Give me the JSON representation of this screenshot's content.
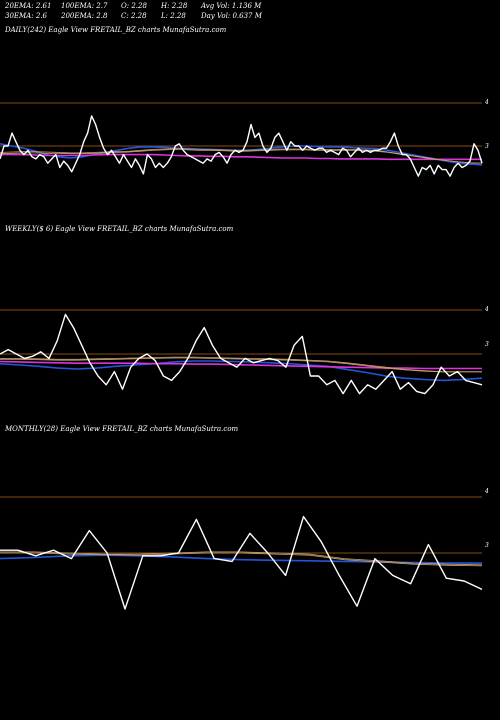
{
  "header": {
    "row1": [
      {
        "label": "20EMA:",
        "value": "2.61"
      },
      {
        "label": "100EMA:",
        "value": "2.7"
      },
      {
        "label": "O:",
        "value": "2.28"
      },
      {
        "label": "H:",
        "value": "2.28"
      },
      {
        "label": "Avg Vol:",
        "value": "1.136  M"
      }
    ],
    "row2": [
      {
        "label": "30EMA:",
        "value": "2.6"
      },
      {
        "label": "200EMA:",
        "value": "2.8"
      },
      {
        "label": "C:",
        "value": "2.28"
      },
      {
        "label": "L:",
        "value": "2.28"
      },
      {
        "label": "Day Vol:",
        "value": "0.637  M"
      }
    ]
  },
  "colors": {
    "background": "#000000",
    "price": "#ffffff",
    "ema_blue": "#2255dd",
    "ema_magenta": "#dd33dd",
    "ema_tan": "#c8a070",
    "level_line": "#b4641e"
  },
  "chart_data": [
    {
      "type": "line",
      "title": "DAILY(242) Eagle  View  FRETAIL_BZ charts MunafaSutra.com",
      "y_ticks": [
        "4",
        "3"
      ],
      "series": [
        {
          "role": "price",
          "values": [
            2.7,
            3.0,
            3.0,
            3.3,
            3.1,
            2.9,
            2.8,
            2.9,
            2.75,
            2.7,
            2.8,
            2.75,
            2.6,
            2.7,
            2.8,
            2.5,
            2.65,
            2.55,
            2.4,
            2.6,
            2.8,
            3.1,
            3.3,
            3.7,
            3.5,
            3.2,
            2.95,
            2.8,
            2.9,
            2.75,
            2.6,
            2.8,
            2.65,
            2.5,
            2.7,
            2.55,
            2.35,
            2.8,
            2.7,
            2.5,
            2.6,
            2.5,
            2.6,
            2.75,
            3.0,
            3.05,
            2.9,
            2.8,
            2.75,
            2.7,
            2.65,
            2.6,
            2.7,
            2.65,
            2.8,
            2.85,
            2.75,
            2.6,
            2.8,
            2.9,
            2.85,
            2.9,
            3.1,
            3.5,
            3.2,
            3.3,
            3.0,
            2.85,
            2.95,
            3.2,
            3.3,
            3.1,
            2.9,
            3.1,
            3.0,
            3.0,
            2.9,
            3.0,
            2.95,
            2.9,
            2.95,
            2.95,
            2.85,
            2.9,
            2.85,
            2.8,
            2.95,
            2.9,
            2.75,
            2.85,
            2.95,
            2.85,
            2.9,
            2.85,
            2.9,
            2.9,
            2.95,
            2.95,
            3.1,
            3.3,
            3.0,
            2.8,
            2.8,
            2.7,
            2.5,
            2.3,
            2.5,
            2.45,
            2.55,
            2.35,
            2.55,
            2.45,
            2.45,
            2.3,
            2.5,
            2.6,
            2.5,
            2.55,
            2.65,
            3.05,
            2.9,
            2.6
          ]
        },
        {
          "role": "ema",
          "color": "#2255dd",
          "values": [
            3.05,
            3.0,
            2.95,
            2.88,
            2.8,
            2.75,
            2.72,
            2.75,
            2.8,
            2.85,
            2.9,
            2.95,
            2.98,
            2.98,
            2.97,
            2.95,
            2.94,
            2.93,
            2.92,
            2.91,
            2.9,
            2.9,
            2.92,
            2.95,
            2.98,
            3.0,
            3.0,
            2.99,
            2.98,
            2.98,
            2.96,
            2.95,
            2.94,
            2.9,
            2.85,
            2.8,
            2.75,
            2.7,
            2.65,
            2.6,
            2.58,
            2.56
          ]
        },
        {
          "role": "ema",
          "color": "#dd33dd",
          "values": [
            2.8,
            2.8,
            2.8,
            2.79,
            2.78,
            2.78,
            2.78,
            2.78,
            2.79,
            2.8,
            2.8,
            2.8,
            2.8,
            2.8,
            2.79,
            2.78,
            2.77,
            2.77,
            2.76,
            2.76,
            2.75,
            2.75,
            2.74,
            2.73,
            2.72,
            2.72,
            2.72,
            2.71,
            2.71,
            2.7,
            2.7,
            2.7,
            2.7,
            2.69,
            2.69,
            2.69,
            2.69,
            2.69,
            2.69,
            2.69,
            2.69,
            2.69
          ]
        },
        {
          "role": "ema",
          "color": "#c8a070",
          "values": [
            2.85,
            2.86,
            2.87,
            2.87,
            2.86,
            2.85,
            2.84,
            2.84,
            2.85,
            2.86,
            2.87,
            2.88,
            2.9,
            2.92,
            2.93,
            2.94,
            2.93,
            2.92,
            2.92,
            2.91,
            2.9,
            2.9,
            2.91,
            2.92,
            2.93,
            2.93,
            2.93,
            2.92,
            2.92,
            2.92,
            2.92,
            2.91,
            2.9,
            2.86,
            2.82,
            2.78,
            2.74,
            2.7,
            2.66,
            2.63,
            2.61,
            2.6
          ]
        },
        {
          "role": "ema",
          "color": "#c8a070",
          "values": [
            2.82,
            2.83,
            2.84,
            2.84,
            2.83,
            2.83,
            2.82,
            2.82,
            2.83,
            2.84,
            2.85,
            2.86,
            2.88,
            2.9,
            2.91,
            2.92,
            2.91,
            2.9,
            2.9,
            2.89,
            2.88,
            2.88,
            2.89,
            2.9,
            2.91,
            2.91,
            2.91,
            2.9,
            2.9,
            2.9,
            2.9,
            2.89,
            2.88,
            2.85,
            2.81,
            2.77,
            2.73,
            2.69,
            2.66,
            2.63,
            2.61,
            2.6
          ]
        }
      ]
    },
    {
      "type": "line",
      "title": "WEEKLY($          6) Eagle  View  FRETAIL_BZ charts MunafaSutra.com",
      "y_ticks": [
        "4",
        "3"
      ],
      "series": [
        {
          "role": "price",
          "values": [
            3.0,
            3.1,
            3.0,
            2.9,
            2.95,
            3.05,
            2.9,
            3.3,
            3.9,
            3.6,
            3.2,
            2.8,
            2.5,
            2.3,
            2.6,
            2.2,
            2.7,
            2.9,
            3.0,
            2.85,
            2.5,
            2.4,
            2.6,
            2.9,
            3.3,
            3.6,
            3.2,
            2.9,
            2.8,
            2.7,
            2.9,
            2.8,
            2.85,
            2.9,
            2.85,
            2.7,
            3.2,
            3.4,
            2.5,
            2.5,
            2.3,
            2.4,
            2.1,
            2.4,
            2.1,
            2.3,
            2.2,
            2.4,
            2.6,
            2.2,
            2.35,
            2.15,
            2.1,
            2.3,
            2.7,
            2.5,
            2.6,
            2.4,
            2.35,
            2.3
          ]
        },
        {
          "role": "ema",
          "color": "#2255dd",
          "values": [
            2.78,
            2.75,
            2.72,
            2.68,
            2.66,
            2.68,
            2.72,
            2.75,
            2.78,
            2.82,
            2.84,
            2.84,
            2.83,
            2.82,
            2.8,
            2.78,
            2.75,
            2.72,
            2.65,
            2.58,
            2.5,
            2.45,
            2.42,
            2.4,
            2.42,
            2.45
          ]
        },
        {
          "role": "ema",
          "color": "#dd33dd",
          "values": [
            2.83,
            2.82,
            2.81,
            2.8,
            2.79,
            2.79,
            2.79,
            2.79,
            2.78,
            2.78,
            2.77,
            2.77,
            2.76,
            2.75,
            2.74,
            2.73,
            2.72,
            2.71,
            2.7,
            2.69,
            2.68,
            2.68,
            2.67,
            2.67,
            2.67,
            2.67
          ]
        },
        {
          "role": "ema",
          "color": "#c8a070",
          "values": [
            2.9,
            2.9,
            2.89,
            2.88,
            2.88,
            2.89,
            2.9,
            2.91,
            2.92,
            2.93,
            2.93,
            2.92,
            2.91,
            2.9,
            2.89,
            2.88,
            2.86,
            2.84,
            2.8,
            2.75,
            2.7,
            2.65,
            2.62,
            2.6,
            2.6,
            2.6
          ]
        },
        {
          "role": "ema",
          "color": "#c8a070",
          "values": [
            2.88,
            2.88,
            2.87,
            2.86,
            2.86,
            2.87,
            2.88,
            2.89,
            2.9,
            2.91,
            2.91,
            2.9,
            2.89,
            2.88,
            2.87,
            2.86,
            2.84,
            2.82,
            2.78,
            2.73,
            2.68,
            2.64,
            2.61,
            2.59,
            2.59,
            2.59
          ]
        }
      ]
    },
    {
      "type": "line",
      "title": "MONTHLY(28) Eagle  View  FRETAIL_BZ charts MunafaSutra.com",
      "y_ticks": [
        "4",
        "3"
      ],
      "series": [
        {
          "role": "price",
          "values": [
            3.05,
            3.05,
            2.95,
            3.05,
            2.9,
            3.4,
            3.0,
            2.0,
            2.95,
            2.95,
            3.0,
            3.6,
            2.9,
            2.85,
            3.35,
            3.0,
            2.6,
            3.65,
            3.2,
            2.6,
            2.05,
            2.9,
            2.6,
            2.45,
            3.15,
            2.55,
            2.5,
            2.35
          ]
        },
        {
          "role": "ema",
          "color": "#2255dd",
          "values": [
            2.9,
            2.92,
            2.95,
            2.96,
            2.95,
            2.93,
            2.9,
            2.88,
            2.87,
            2.86,
            2.85,
            2.84,
            2.83,
            2.82,
            2.82
          ]
        },
        {
          "role": "ema",
          "color": "#c8a070",
          "values": [
            3.02,
            3.02,
            3.0,
            2.98,
            2.98,
            3.0,
            3.02,
            3.02,
            3.0,
            2.98,
            2.9,
            2.86,
            2.82,
            2.8,
            2.79
          ]
        },
        {
          "role": "ema",
          "color": "#c8a070",
          "values": [
            3.0,
            3.0,
            2.98,
            2.97,
            2.96,
            2.98,
            3.0,
            3.0,
            2.98,
            2.96,
            2.88,
            2.84,
            2.8,
            2.78,
            2.77
          ]
        }
      ]
    }
  ]
}
